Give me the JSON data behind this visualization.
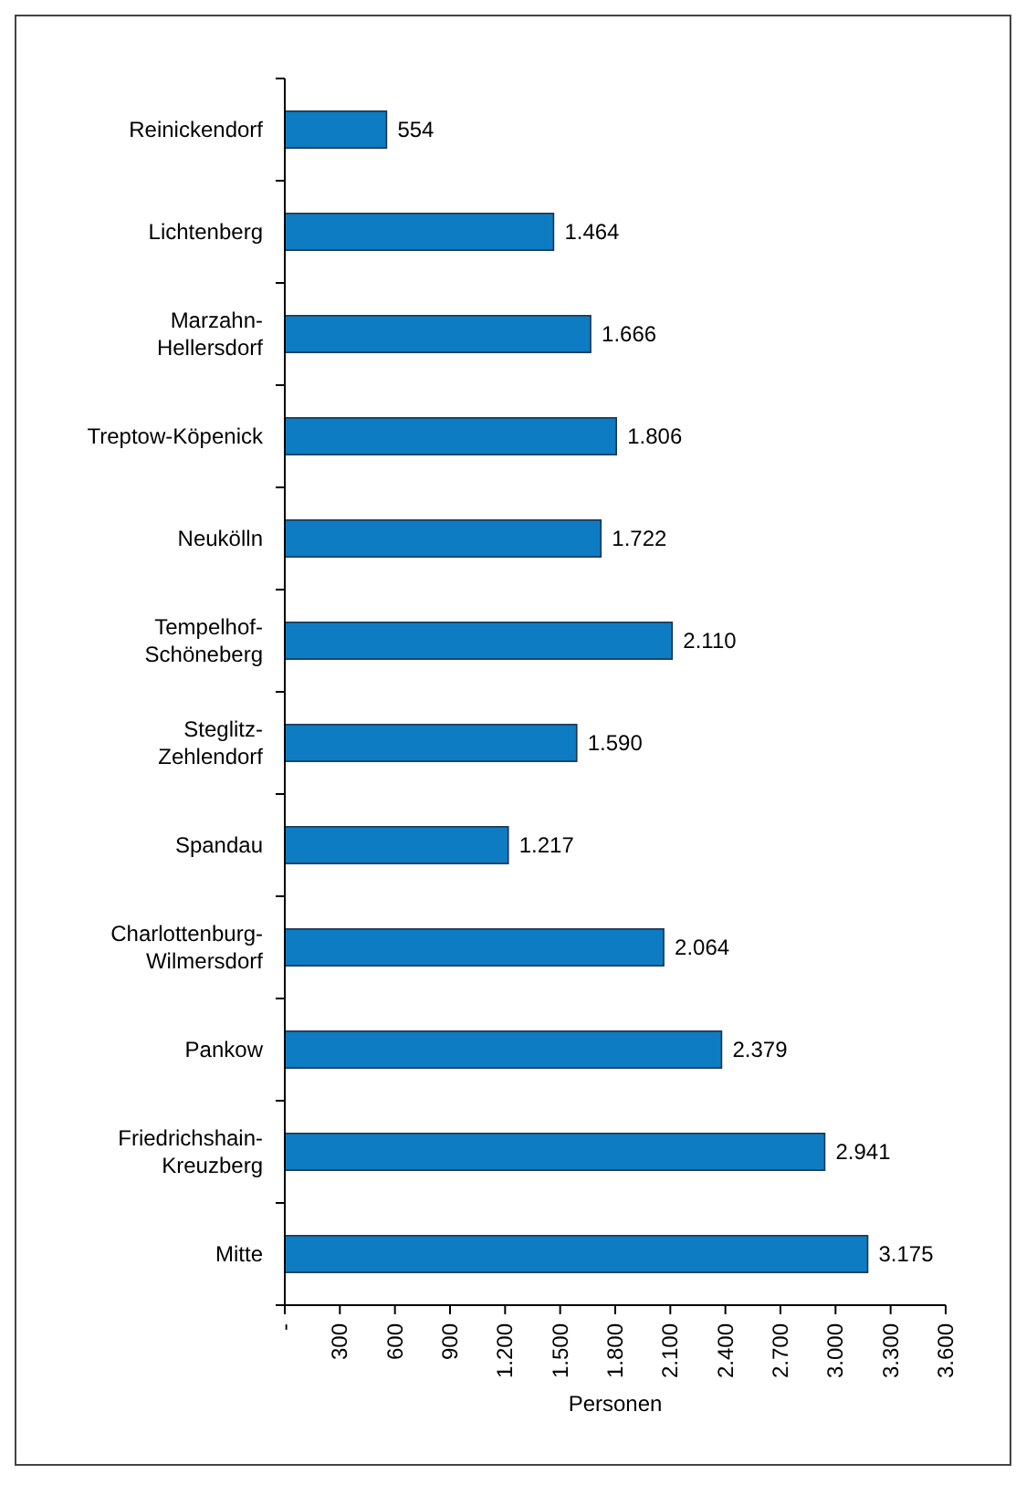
{
  "chart_data": {
    "type": "bar",
    "orientation": "horizontal",
    "xlabel": "Personen",
    "categories": [
      "Reinickendorf",
      "Lichtenberg",
      "Marzahn-\nHellersdorf",
      "Treptow-Köpenick",
      "Neukölln",
      "Tempelhof-\nSchöneberg",
      "Steglitz-\nZehlendorf",
      "Spandau",
      "Charlottenburg-\nWilmersdorf",
      "Pankow",
      "Friedrichshain-\nKreuzberg",
      "Mitte"
    ],
    "values": [
      554,
      1464,
      1666,
      1806,
      1722,
      2110,
      1590,
      1217,
      2064,
      2379,
      2941,
      3175
    ],
    "value_labels": [
      "554",
      "1.464",
      "1.666",
      "1.806",
      "1.722",
      "2.110",
      "1.590",
      "1.217",
      "2.064",
      "2.379",
      "2.941",
      "3.175"
    ],
    "color": "#0e7cc2",
    "xlim": [
      0,
      3600
    ],
    "xticks": [
      {
        "value": 0,
        "label": "-"
      },
      300,
      600,
      900,
      {
        "value": 1200,
        "label": "1.200"
      },
      {
        "value": 1500,
        "label": "1.500"
      },
      {
        "value": 1800,
        "label": "1.800"
      },
      {
        "value": 2100,
        "label": "2.100"
      },
      {
        "value": 2400,
        "label": "2.400"
      },
      {
        "value": 2700,
        "label": "2.700"
      },
      {
        "value": 3000,
        "label": "3.000"
      },
      {
        "value": 3300,
        "label": "3.300"
      },
      {
        "value": 3600,
        "label": "3.600"
      }
    ]
  }
}
